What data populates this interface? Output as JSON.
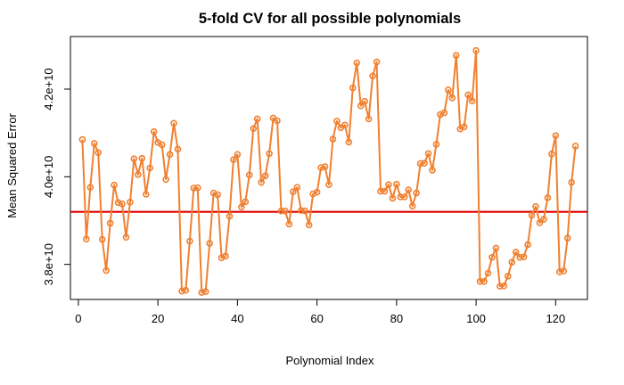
{
  "chart_data": {
    "type": "line",
    "title": "5-fold CV for all possible polynomials",
    "xlabel": "Polynomial Index",
    "ylabel": "Mean Squared Error",
    "xlim": [
      -2,
      128
    ],
    "ylim": [
      37200000000,
      43200000000
    ],
    "x_ticks": [
      0,
      20,
      40,
      60,
      80,
      100,
      120
    ],
    "x_tick_labels": [
      "0",
      "20",
      "40",
      "60",
      "80",
      "100",
      "120"
    ],
    "y_ticks": [
      38000000000,
      40000000000,
      42000000000
    ],
    "y_tick_labels": [
      "3.8e+10",
      "4.0e+10",
      "4.2e+10"
    ],
    "grid": false,
    "legend": "none",
    "series": [
      {
        "color": "#F08030",
        "marker": "open-circle",
        "x": [
          1,
          2,
          3,
          4,
          5,
          6,
          7,
          8,
          9,
          10,
          11,
          12,
          13,
          14,
          15,
          16,
          17,
          18,
          19,
          20,
          21,
          22,
          23,
          24,
          25,
          26,
          27,
          28,
          29,
          30,
          31,
          32,
          33,
          34,
          35,
          36,
          37,
          38,
          39,
          40,
          41,
          42,
          43,
          44,
          45,
          46,
          47,
          48,
          49,
          50,
          51,
          52,
          53,
          54,
          55,
          56,
          57,
          58,
          59,
          60,
          61,
          62,
          63,
          64,
          65,
          66,
          67,
          68,
          69,
          70,
          71,
          72,
          73,
          74,
          75,
          76,
          77,
          78,
          79,
          80,
          81,
          82,
          83,
          84,
          85,
          86,
          87,
          88,
          89,
          90,
          91,
          92,
          93,
          94,
          95,
          96,
          97,
          98,
          99,
          100,
          101,
          102,
          103,
          104,
          105,
          106,
          107,
          108,
          109,
          110,
          111,
          112,
          113,
          114,
          115,
          116,
          117,
          118,
          119,
          120,
          121,
          122,
          123,
          124,
          125
        ],
        "values": [
          40850000000,
          38580000000,
          39760000000,
          40760000000,
          40550000000,
          38570000000,
          37860000000,
          38940000000,
          39810000000,
          39410000000,
          39380000000,
          38620000000,
          39420000000,
          40410000000,
          40050000000,
          40420000000,
          39600000000,
          40200000000,
          41030000000,
          40780000000,
          40730000000,
          39940000000,
          40510000000,
          41220000000,
          40630000000,
          37390000000,
          37410000000,
          38530000000,
          39740000000,
          39750000000,
          37360000000,
          37380000000,
          38480000000,
          39630000000,
          39590000000,
          38150000000,
          38190000000,
          39100000000,
          40390000000,
          40510000000,
          39310000000,
          39430000000,
          40040000000,
          41100000000,
          41320000000,
          39870000000,
          40020000000,
          40530000000,
          41340000000,
          41280000000,
          39220000000,
          39220000000,
          38920000000,
          39660000000,
          39760000000,
          39230000000,
          39220000000,
          38900000000,
          39610000000,
          39650000000,
          40210000000,
          40230000000,
          39820000000,
          40860000000,
          41270000000,
          41120000000,
          41180000000,
          40790000000,
          42030000000,
          42600000000,
          41620000000,
          41720000000,
          41320000000,
          42300000000,
          42620000000,
          39670000000,
          39670000000,
          39820000000,
          39510000000,
          39830000000,
          39540000000,
          39540000000,
          39700000000,
          39330000000,
          39630000000,
          40300000000,
          40310000000,
          40530000000,
          40150000000,
          40740000000,
          41420000000,
          41460000000,
          41980000000,
          41800000000,
          42770000000,
          41090000000,
          41140000000,
          41870000000,
          41730000000,
          42880000000,
          37610000000,
          37610000000,
          37800000000,
          38160000000,
          38370000000,
          37500000000,
          37510000000,
          37730000000,
          38050000000,
          38280000000,
          38160000000,
          38170000000,
          38450000000,
          39120000000,
          39320000000,
          38950000000,
          39030000000,
          39520000000,
          40520000000,
          40940000000,
          37830000000,
          37850000000,
          38600000000,
          39870000000,
          40700000000
        ]
      },
      {
        "type": "hline",
        "color": "#E00000",
        "y": 39200000000
      }
    ]
  }
}
